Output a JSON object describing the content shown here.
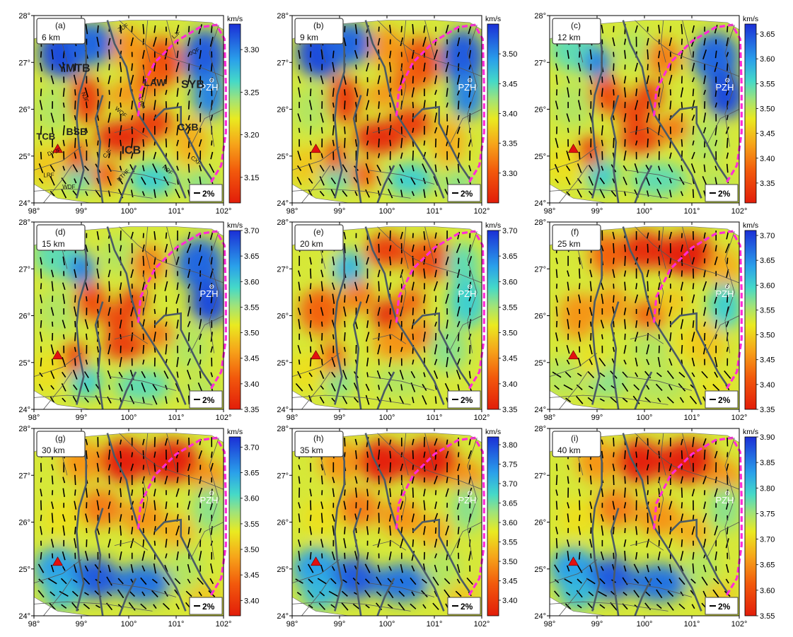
{
  "lon_ticks": [
    "98°",
    "99°",
    "100°",
    "101°",
    "102°"
  ],
  "lat_ticks": [
    "24°",
    "25°",
    "26°",
    "27°",
    "28°"
  ],
  "unit": "km/s",
  "city": "PZH",
  "scale_label": "2%",
  "colors": {
    "fast": "#1b2fd6",
    "mid": "#e8e81e",
    "slow": "#e21d0a",
    "dashed": "#ff2bd6",
    "fault_thick": "#4a5a66",
    "fault_thin": "#555555",
    "triangle": "#e31010"
  },
  "block_labels": [
    {
      "text": "YMTB",
      "x": 98.85,
      "y": 26.8,
      "size": 16
    },
    {
      "text": "LAW",
      "x": 100.55,
      "y": 26.5,
      "size": 14
    },
    {
      "text": "SYB",
      "x": 101.35,
      "y": 26.45,
      "size": 16
    },
    {
      "text": "TCB",
      "x": 98.25,
      "y": 25.35,
      "size": 13
    },
    {
      "text": "BSB",
      "x": 98.9,
      "y": 25.45,
      "size": 14
    },
    {
      "text": "ICB",
      "x": 100.05,
      "y": 25.05,
      "size": 16
    },
    {
      "text": "CXB",
      "x": 101.25,
      "y": 25.55,
      "size": 14
    }
  ],
  "fault_labels": [
    "ZDF",
    "JQF",
    "LJF",
    "NJF",
    "WQF",
    "CHF",
    "CJF",
    "RRF",
    "DYJF",
    "LRF",
    "WDF",
    "NTHF",
    "CXF"
  ],
  "panels": [
    {
      "label": "(a)",
      "depth": "6 km",
      "cb_ticks": [
        "3.15",
        "3.20",
        "3.25",
        "3.30"
      ],
      "vmin": 3.12,
      "vmax": 3.33,
      "pattern": "shallow"
    },
    {
      "label": "(b)",
      "depth": "9 km",
      "cb_ticks": [
        "3.30",
        "3.35",
        "3.40",
        "3.45",
        "3.50"
      ],
      "vmin": 3.25,
      "vmax": 3.55,
      "pattern": "shallow"
    },
    {
      "label": "(c)",
      "depth": "12 km",
      "cb_ticks": [
        "3.35",
        "3.40",
        "3.45",
        "3.50",
        "3.55",
        "3.60",
        "3.65"
      ],
      "vmin": 3.31,
      "vmax": 3.67,
      "pattern": "mid1"
    },
    {
      "label": "(d)",
      "depth": "15 km",
      "cb_ticks": [
        "3.35",
        "3.40",
        "3.45",
        "3.50",
        "3.55",
        "3.60",
        "3.65",
        "3.70"
      ],
      "vmin": 3.35,
      "vmax": 3.7,
      "pattern": "mid1"
    },
    {
      "label": "(e)",
      "depth": "20 km",
      "cb_ticks": [
        "3.35",
        "3.40",
        "3.45",
        "3.50",
        "3.55",
        "3.60",
        "3.65",
        "3.70"
      ],
      "vmin": 3.35,
      "vmax": 3.7,
      "pattern": "mid2"
    },
    {
      "label": "(f)",
      "depth": "25 km",
      "cb_ticks": [
        "3.35",
        "3.40",
        "3.45",
        "3.50",
        "3.55",
        "3.60",
        "3.65",
        "3.70"
      ],
      "vmin": 3.35,
      "vmax": 3.71,
      "pattern": "deep1"
    },
    {
      "label": "(g)",
      "depth": "30 km",
      "cb_ticks": [
        "3.40",
        "3.45",
        "3.50",
        "3.55",
        "3.60",
        "3.65",
        "3.70"
      ],
      "vmin": 3.37,
      "vmax": 3.72,
      "pattern": "deep2"
    },
    {
      "label": "(h)",
      "depth": "35 km",
      "cb_ticks": [
        "3.40",
        "3.45",
        "3.50",
        "3.55",
        "3.60",
        "3.65",
        "3.70",
        "3.75",
        "3.80"
      ],
      "vmin": 3.36,
      "vmax": 3.82,
      "pattern": "deep2"
    },
    {
      "label": "(i)",
      "depth": "40 km",
      "cb_ticks": [
        "3.55",
        "3.60",
        "3.65",
        "3.70",
        "3.75",
        "3.80",
        "3.85",
        "3.90"
      ],
      "vmin": 3.55,
      "vmax": 3.9,
      "pattern": "deep2"
    }
  ]
}
